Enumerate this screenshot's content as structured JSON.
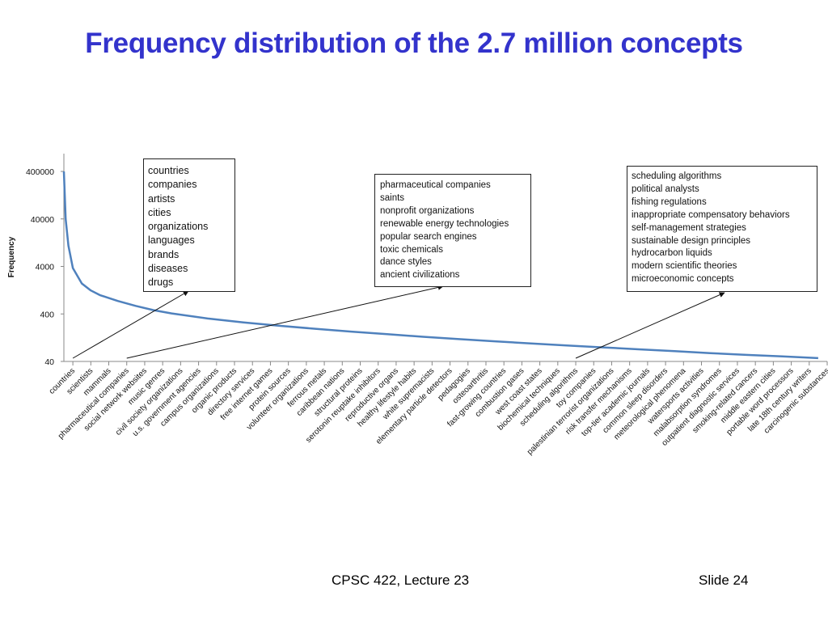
{
  "slide": {
    "title": "Frequency distribution of the 2.7 million concepts",
    "footer_course": "CPSC 422, Lecture 23",
    "footer_slide": "Slide 24"
  },
  "chart_data": {
    "type": "line",
    "ylabel": "Frequency",
    "xlabel": "",
    "y_scale": "log",
    "ylim": [
      40,
      400000
    ],
    "y_ticks": [
      "400000",
      "40000",
      "4000",
      "400",
      "40"
    ],
    "y_tick_values": [
      400000,
      40000,
      4000,
      400,
      40
    ],
    "grid": false,
    "legend": "none",
    "line_color": "#4f81bd",
    "categories": [
      "countries",
      "scientists",
      "mammals",
      "pharmaceutical companies",
      "social network websites",
      "music genres",
      "civil society organizations",
      "u.s. government agencies",
      "campus organizations",
      "organic products",
      "directory services",
      "free internet games",
      "protein sources",
      "volunteer organizations",
      "ferrous metals",
      "caribbean nations",
      "structural proteins",
      "serotonin reuptake inhibitors",
      "reproductive organs",
      "healthy lifestyle habits",
      "white supremacists",
      "elementary particle detectors",
      "pedagogies",
      "osteoarthritis",
      "fast-growing countries",
      "combustion gases",
      "west coast states",
      "biochemical techniques",
      "scheduling algorithms",
      "toy companies",
      "palestinian terrorist organizations",
      "risk transfer mechanisms",
      "top-tier academic journals",
      "common sleep disorders",
      "meteorological phenomena",
      "watersports activities",
      "malabsorption syndromes",
      "outpatient diagnostic services",
      "smoking-related cancers",
      "middle eastern cities",
      "portable word processors",
      "late 18th century writers",
      "carcinogenic substances"
    ],
    "series": [
      {
        "x": [
          0,
          0.1,
          0.25,
          0.5,
          1,
          1.5,
          2,
          3,
          4,
          5,
          6,
          8,
          10,
          12,
          14,
          16,
          18,
          20,
          22,
          24,
          26,
          28,
          30,
          32,
          34,
          36,
          38,
          40,
          42
        ],
        "values": [
          400000,
          40000,
          11000,
          3700,
          1750,
          1250,
          1000,
          750,
          590,
          480,
          410,
          320,
          265,
          225,
          195,
          170,
          150,
          132,
          118,
          106,
          96,
          87,
          79,
          72,
          66,
          60,
          55,
          51,
          47
        ]
      }
    ],
    "annotations": [
      {
        "pointer_category": "countries",
        "items": [
          "countries",
          "companies",
          "artists",
          "cities",
          "organizations",
          "languages",
          "brands",
          "diseases",
          "drugs"
        ]
      },
      {
        "pointer_category": "pharmaceutical companies",
        "items": [
          "pharmaceutical companies",
          "saints",
          "nonprofit organizations",
          "renewable energy technologies",
          "popular search engines",
          "toxic chemicals",
          "dance styles",
          "ancient civilizations"
        ]
      },
      {
        "pointer_category": "scheduling algorithms",
        "items": [
          "scheduling algorithms",
          "political analysts",
          "fishing regulations",
          "inappropriate compensatory behaviors",
          "self-management strategies",
          "sustainable design principles",
          "hydrocarbon liquids",
          "modern scientific theories",
          "microeconomic concepts"
        ]
      }
    ]
  }
}
